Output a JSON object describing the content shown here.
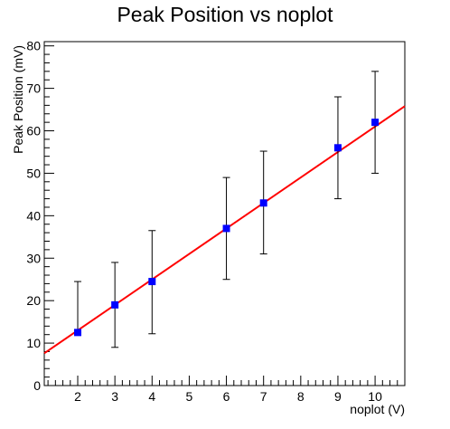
{
  "chart_data": {
    "type": "scatter",
    "title": "Peak Position vs noplot",
    "xlabel": "noplot (V)",
    "ylabel": "Peak Position (mV)",
    "xlim": [
      1.1,
      10.8
    ],
    "ylim": [
      0,
      81
    ],
    "x_ticks": [
      2,
      3,
      4,
      5,
      6,
      7,
      8,
      9,
      10
    ],
    "y_ticks": [
      0,
      10,
      20,
      30,
      40,
      50,
      60,
      70,
      80
    ],
    "grid": false,
    "series": [
      {
        "marker_color": "#0000ff",
        "points": [
          {
            "x": 2,
            "y": 12.5,
            "err_low": 12.5,
            "err_high": 24.5
          },
          {
            "x": 3,
            "y": 19,
            "err_low": 9,
            "err_high": 29
          },
          {
            "x": 4,
            "y": 24.5,
            "err_low": 12.2,
            "err_high": 36.5
          },
          {
            "x": 6,
            "y": 37,
            "err_low": 25,
            "err_high": 49
          },
          {
            "x": 7,
            "y": 43,
            "err_low": 31,
            "err_high": 55.2
          },
          {
            "x": 9,
            "y": 56,
            "err_low": 44,
            "err_high": 68
          },
          {
            "x": 10,
            "y": 62,
            "err_low": 50,
            "err_high": 74
          }
        ]
      }
    ],
    "fit": {
      "type": "line",
      "color": "#ff0000",
      "slope": 6.0,
      "intercept": 1.0,
      "x_range": [
        1.1,
        10.8
      ]
    }
  }
}
